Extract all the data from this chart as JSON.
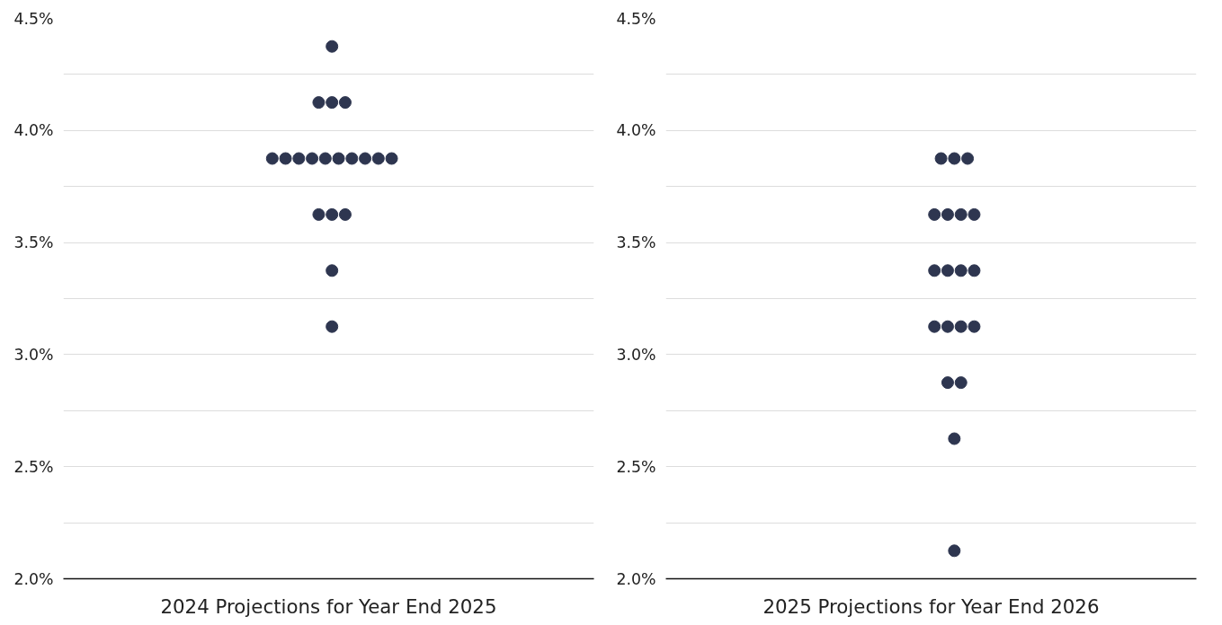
{
  "chart_data": [
    {
      "type": "scatter",
      "xlabel": "2024 Projections for Year End 2025",
      "marker": "circle",
      "grid": "y",
      "tick_labels": "y",
      "ylim": [
        2.0,
        4.5
      ],
      "categories": [
        null,
        null,
        null,
        null,
        null,
        null,
        null,
        null,
        null,
        null,
        null,
        null,
        null,
        null,
        null,
        null,
        null,
        null,
        null,
        null,
        null,
        null,
        null,
        null,
        null,
        null,
        null,
        null,
        null,
        null,
        null,
        null,
        null,
        null,
        null,
        null,
        null,
        null,
        null,
        null,
        null,
        null,
        null,
        null,
        null,
        null,
        null,
        null,
        null,
        null,
        null,
        null,
        null,
        null,
        null,
        null,
        null,
        null,
        null,
        null,
        null,
        null,
        null,
        null,
        null,
        null,
        null,
        null,
        null,
        null,
        null,
        null,
        null,
        null,
        null,
        null,
        null,
        null,
        null,
        null
      ],
      "yticks": [
        {
          "value": 2.0,
          "label": "2.0%"
        },
        {
          "value": 2.25,
          "label": null
        },
        {
          "value": 2.5,
          "label": "2.5%"
        },
        {
          "value": 2.75,
          "label": null
        },
        {
          "value": 3.0,
          "label": "3.0%"
        },
        {
          "value": 3.25,
          "label": null
        },
        {
          "value": 3.5,
          "label": "3.5%"
        },
        {
          "value": 3.75,
          "label": null
        },
        {
          "value": 4.0,
          "label": "4.0%"
        },
        {
          "value": 4.25,
          "label": null
        },
        {
          "value": 4.5,
          "label": "4.5%"
        }
      ],
      "series": [
        {
          "color": "#2e3650",
          "values": [
            null,
            null,
            null,
            null,
            null,
            null,
            null,
            null,
            null,
            null,
            null,
            null,
            null,
            null,
            null,
            null,
            null,
            null,
            null,
            null,
            null,
            null,
            null,
            null,
            null,
            null,
            null,
            null,
            null,
            null,
            null,
            null,
            null,
            null,
            null,
            null,
            null,
            null,
            null,
            null,
            4.375,
            null,
            null,
            null,
            null,
            null,
            null,
            null,
            null,
            null,
            null,
            null,
            null,
            null,
            null,
            null,
            null,
            null,
            null,
            null,
            null,
            null,
            null,
            null,
            null,
            null,
            null,
            null,
            null,
            null,
            null,
            null,
            null,
            null,
            null,
            null,
            null,
            null,
            null,
            null
          ]
        },
        {
          "color": "#2e3650",
          "values": [
            null,
            null,
            null,
            null,
            null,
            null,
            null,
            null,
            null,
            null,
            null,
            null,
            null,
            null,
            null,
            null,
            null,
            null,
            null,
            null,
            null,
            null,
            null,
            null,
            null,
            null,
            null,
            null,
            null,
            null,
            null,
            null,
            null,
            null,
            null,
            null,
            null,
            null,
            4.125,
            null,
            4.125,
            null,
            4.125,
            null,
            null,
            null,
            null,
            null,
            null,
            null,
            null,
            null,
            null,
            null,
            null,
            null,
            null,
            null,
            null,
            null,
            null,
            null,
            null,
            null,
            null,
            null,
            null,
            null,
            null,
            null,
            null,
            null,
            null,
            null,
            null,
            null,
            null,
            null,
            null,
            null
          ]
        },
        {
          "color": "#2e3650",
          "values": [
            null,
            null,
            null,
            null,
            null,
            null,
            null,
            null,
            null,
            null,
            null,
            null,
            null,
            null,
            null,
            null,
            null,
            null,
            null,
            null,
            null,
            null,
            null,
            null,
            null,
            null,
            null,
            null,
            null,
            null,
            null,
            3.875,
            null,
            3.875,
            null,
            3.875,
            null,
            3.875,
            null,
            3.875,
            null,
            3.875,
            null,
            3.875,
            null,
            3.875,
            null,
            3.875,
            null,
            3.875,
            null,
            null,
            null,
            null,
            null,
            null,
            null,
            null,
            null,
            null,
            null,
            null,
            null,
            null,
            null,
            null,
            null,
            null,
            null,
            null,
            null,
            null,
            null,
            null,
            null,
            null,
            null,
            null,
            null,
            null
          ]
        },
        {
          "color": "#2e3650",
          "values": [
            null,
            null,
            null,
            null,
            null,
            null,
            null,
            null,
            null,
            null,
            null,
            null,
            null,
            null,
            null,
            null,
            null,
            null,
            null,
            null,
            null,
            null,
            null,
            null,
            null,
            null,
            null,
            null,
            null,
            null,
            null,
            null,
            null,
            null,
            null,
            null,
            null,
            null,
            3.625,
            null,
            3.625,
            null,
            3.625,
            null,
            null,
            null,
            null,
            null,
            null,
            null,
            null,
            null,
            null,
            null,
            null,
            null,
            null,
            null,
            null,
            null,
            null,
            null,
            null,
            null,
            null,
            null,
            null,
            null,
            null,
            null,
            null,
            null,
            null,
            null,
            null,
            null,
            null,
            null,
            null,
            null
          ]
        },
        {
          "color": "#2e3650",
          "values": [
            null,
            null,
            null,
            null,
            null,
            null,
            null,
            null,
            null,
            null,
            null,
            null,
            null,
            null,
            null,
            null,
            null,
            null,
            null,
            null,
            null,
            null,
            null,
            null,
            null,
            null,
            null,
            null,
            null,
            null,
            null,
            null,
            null,
            null,
            null,
            null,
            null,
            null,
            null,
            null,
            3.375,
            null,
            null,
            null,
            null,
            null,
            null,
            null,
            null,
            null,
            null,
            null,
            null,
            null,
            null,
            null,
            null,
            null,
            null,
            null,
            null,
            null,
            null,
            null,
            null,
            null,
            null,
            null,
            null,
            null,
            null,
            null,
            null,
            null,
            null,
            null,
            null,
            null,
            null,
            null
          ]
        },
        {
          "color": "#2e3650",
          "values": [
            null,
            null,
            null,
            null,
            null,
            null,
            null,
            null,
            null,
            null,
            null,
            null,
            null,
            null,
            null,
            null,
            null,
            null,
            null,
            null,
            null,
            null,
            null,
            null,
            null,
            null,
            null,
            null,
            null,
            null,
            null,
            null,
            null,
            null,
            null,
            null,
            null,
            null,
            null,
            null,
            3.125,
            null,
            null,
            null,
            null,
            null,
            null,
            null,
            null,
            null,
            null,
            null,
            null,
            null,
            null,
            null,
            null,
            null,
            null,
            null,
            null,
            null,
            null,
            null,
            null,
            null,
            null,
            null,
            null,
            null,
            null,
            null,
            null,
            null,
            null,
            null,
            null,
            null,
            null,
            null
          ]
        }
      ]
    },
    {
      "type": "scatter",
      "xlabel": "2025 Projections for Year End 2026",
      "marker": "circle",
      "grid": "y",
      "tick_labels": "y",
      "ylim": [
        2.0,
        4.5
      ],
      "categories": [
        null,
        null,
        null,
        null,
        null,
        null,
        null,
        null,
        null,
        null,
        null,
        null,
        null,
        null,
        null,
        null,
        null,
        null,
        null,
        null,
        null,
        null,
        null,
        null,
        null,
        null,
        null,
        null,
        null,
        null,
        null,
        null,
        null,
        null,
        null,
        null,
        null,
        null,
        null,
        null,
        null,
        null,
        null,
        null,
        null,
        null,
        null,
        null,
        null,
        null,
        null,
        null,
        null,
        null,
        null,
        null,
        null,
        null,
        null,
        null,
        null,
        null,
        null,
        null,
        null,
        null,
        null,
        null,
        null,
        null,
        null,
        null,
        null,
        null,
        null,
        null,
        null,
        null,
        null,
        null
      ],
      "yticks": [
        {
          "value": 2.0,
          "label": "2.0%"
        },
        {
          "value": 2.25,
          "label": null
        },
        {
          "value": 2.5,
          "label": "2.5%"
        },
        {
          "value": 2.75,
          "label": null
        },
        {
          "value": 3.0,
          "label": "3.0%"
        },
        {
          "value": 3.25,
          "label": null
        },
        {
          "value": 3.5,
          "label": "3.5%"
        },
        {
          "value": 3.75,
          "label": null
        },
        {
          "value": 4.0,
          "label": "4.0%"
        },
        {
          "value": 4.25,
          "label": null
        },
        {
          "value": 4.5,
          "label": "4.5%"
        }
      ],
      "series": [
        {
          "color": "#2e3650",
          "values": [
            null,
            null,
            null,
            null,
            null,
            null,
            null,
            null,
            null,
            null,
            null,
            null,
            null,
            null,
            null,
            null,
            null,
            null,
            null,
            null,
            null,
            null,
            null,
            null,
            null,
            null,
            null,
            null,
            null,
            null,
            null,
            null,
            null,
            null,
            null,
            null,
            null,
            null,
            null,
            null,
            null,
            3.875,
            null,
            3.875,
            null,
            3.875,
            null,
            null,
            null,
            null,
            null,
            null,
            null,
            null,
            null,
            null,
            null,
            null,
            null,
            null,
            null,
            null,
            null,
            null,
            null,
            null,
            null,
            null,
            null,
            null,
            null,
            null,
            null,
            null,
            null,
            null,
            null,
            null,
            null,
            null
          ]
        },
        {
          "color": "#2e3650",
          "values": [
            null,
            null,
            null,
            null,
            null,
            null,
            null,
            null,
            null,
            null,
            null,
            null,
            null,
            null,
            null,
            null,
            null,
            null,
            null,
            null,
            null,
            null,
            null,
            null,
            null,
            null,
            null,
            null,
            null,
            null,
            null,
            null,
            null,
            null,
            null,
            null,
            null,
            null,
            null,
            null,
            3.625,
            null,
            3.625,
            null,
            3.625,
            null,
            3.625,
            null,
            null,
            null,
            null,
            null,
            null,
            null,
            null,
            null,
            null,
            null,
            null,
            null,
            null,
            null,
            null,
            null,
            null,
            null,
            null,
            null,
            null,
            null,
            null,
            null,
            null,
            null,
            null,
            null,
            null,
            null,
            null,
            null
          ]
        },
        {
          "color": "#2e3650",
          "values": [
            null,
            null,
            null,
            null,
            null,
            null,
            null,
            null,
            null,
            null,
            null,
            null,
            null,
            null,
            null,
            null,
            null,
            null,
            null,
            null,
            null,
            null,
            null,
            null,
            null,
            null,
            null,
            null,
            null,
            null,
            null,
            null,
            null,
            null,
            null,
            null,
            null,
            null,
            null,
            null,
            3.375,
            null,
            3.375,
            null,
            3.375,
            null,
            3.375,
            null,
            null,
            null,
            null,
            null,
            null,
            null,
            null,
            null,
            null,
            null,
            null,
            null,
            null,
            null,
            null,
            null,
            null,
            null,
            null,
            null,
            null,
            null,
            null,
            null,
            null,
            null,
            null,
            null,
            null,
            null,
            null,
            null
          ]
        },
        {
          "color": "#2e3650",
          "values": [
            null,
            null,
            null,
            null,
            null,
            null,
            null,
            null,
            null,
            null,
            null,
            null,
            null,
            null,
            null,
            null,
            null,
            null,
            null,
            null,
            null,
            null,
            null,
            null,
            null,
            null,
            null,
            null,
            null,
            null,
            null,
            null,
            null,
            null,
            null,
            null,
            null,
            null,
            null,
            null,
            3.125,
            null,
            3.125,
            null,
            3.125,
            null,
            3.125,
            null,
            null,
            null,
            null,
            null,
            null,
            null,
            null,
            null,
            null,
            null,
            null,
            null,
            null,
            null,
            null,
            null,
            null,
            null,
            null,
            null,
            null,
            null,
            null,
            null,
            null,
            null,
            null,
            null,
            null,
            null,
            null,
            null
          ]
        },
        {
          "color": "#2e3650",
          "values": [
            null,
            null,
            null,
            null,
            null,
            null,
            null,
            null,
            null,
            null,
            null,
            null,
            null,
            null,
            null,
            null,
            null,
            null,
            null,
            null,
            null,
            null,
            null,
            null,
            null,
            null,
            null,
            null,
            null,
            null,
            null,
            null,
            null,
            null,
            null,
            null,
            null,
            null,
            null,
            null,
            null,
            null,
            2.875,
            null,
            2.875,
            null,
            null,
            null,
            null,
            null,
            null,
            null,
            null,
            null,
            null,
            null,
            null,
            null,
            null,
            null,
            null,
            null,
            null,
            null,
            null,
            null,
            null,
            null,
            null,
            null,
            null,
            null,
            null,
            null,
            null,
            null,
            null,
            null,
            null,
            null
          ]
        },
        {
          "color": "#2e3650",
          "values": [
            null,
            null,
            null,
            null,
            null,
            null,
            null,
            null,
            null,
            null,
            null,
            null,
            null,
            null,
            null,
            null,
            null,
            null,
            null,
            null,
            null,
            null,
            null,
            null,
            null,
            null,
            null,
            null,
            null,
            null,
            null,
            null,
            null,
            null,
            null,
            null,
            null,
            null,
            null,
            null,
            null,
            null,
            null,
            2.625,
            null,
            null,
            null,
            null,
            null,
            null,
            null,
            null,
            null,
            null,
            null,
            null,
            null,
            null,
            null,
            null,
            null,
            null,
            null,
            null,
            null,
            null,
            null,
            null,
            null,
            null,
            null,
            null,
            null,
            null,
            null,
            null,
            null,
            null,
            null,
            null
          ]
        },
        {
          "color": "#2e3650",
          "values": [
            null,
            null,
            null,
            null,
            null,
            null,
            null,
            null,
            null,
            null,
            null,
            null,
            null,
            null,
            null,
            null,
            null,
            null,
            null,
            null,
            null,
            null,
            null,
            null,
            null,
            null,
            null,
            null,
            null,
            null,
            null,
            null,
            null,
            null,
            null,
            null,
            null,
            null,
            null,
            null,
            null,
            null,
            null,
            2.125,
            null,
            null,
            null,
            null,
            null,
            null,
            null,
            null,
            null,
            null,
            null,
            null,
            null,
            null,
            null,
            null,
            null,
            null,
            null,
            null,
            null,
            null,
            null,
            null,
            null,
            null,
            null,
            null,
            null,
            null,
            null,
            null,
            null,
            null,
            null,
            null
          ]
        }
      ]
    }
  ]
}
